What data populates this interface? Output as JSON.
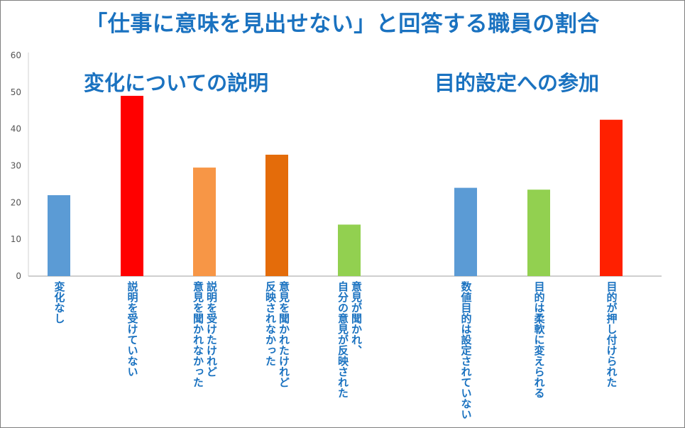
{
  "title": "「仕事に意味を見出せない」と回答する職員の割合",
  "groups": [
    {
      "label": "変化についての説明"
    },
    {
      "label": "目的設定への参加"
    }
  ],
  "chart_data": {
    "type": "bar",
    "title": "「仕事に意味を見出せない」と回答する職員の割合",
    "xlabel": "",
    "ylabel": "",
    "ylim": [
      0,
      60
    ],
    "yticks": [
      0,
      10,
      20,
      30,
      40,
      50,
      60
    ],
    "grid": false,
    "categories": [
      "変化なし",
      "説明を受けていない",
      "説明を受けたけれど 意見を聞かれなかった",
      "意見を聞かれたけれど 反映されなかった",
      "意見が聞かれ、 自分の意見が反映された",
      "数値目的は設定されていない",
      "目的は柔軟に変えられる",
      "目的が押し付けられた"
    ],
    "values": [
      22,
      49,
      29.5,
      33,
      14,
      24,
      23.5,
      42.5
    ],
    "colors": [
      "#5b9bd5",
      "#ff0000",
      "#f79646",
      "#e46c0a",
      "#92d050",
      "#5b9bd5",
      "#92d050",
      "#ff2000"
    ]
  }
}
